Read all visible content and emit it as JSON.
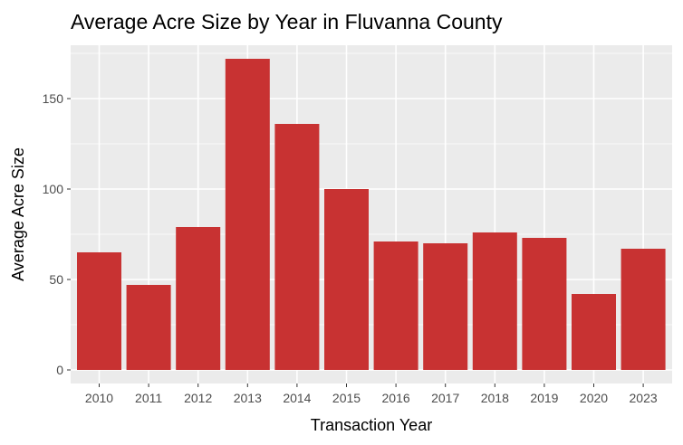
{
  "chart_data": {
    "type": "bar",
    "title": "Average Acre Size by Year in Fluvanna County",
    "xlabel": "Transaction Year",
    "ylabel": "Average Acre Size",
    "categories": [
      "2010",
      "2011",
      "2012",
      "2013",
      "2014",
      "2015",
      "2016",
      "2017",
      "2018",
      "2019",
      "2020",
      "2023"
    ],
    "values": [
      65,
      47,
      79,
      172,
      136,
      100,
      71,
      70,
      76,
      73,
      42,
      67
    ],
    "ylim": [
      0,
      180
    ],
    "yticks": [
      0,
      50,
      100,
      150
    ],
    "grid": true,
    "bar_color": "#C83232",
    "panel_color": "#EBEBEB"
  }
}
